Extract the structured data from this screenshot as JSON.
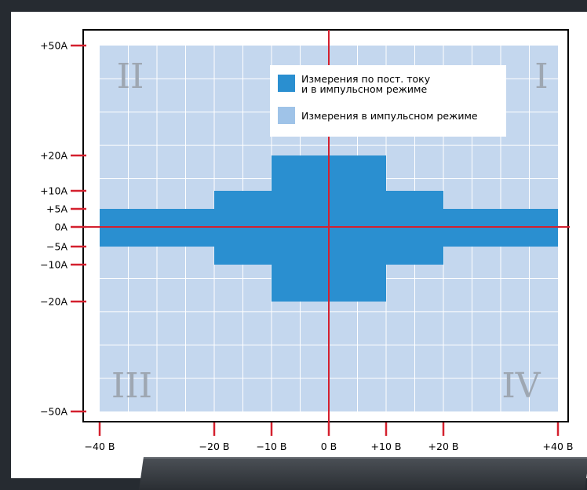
{
  "chart_data": {
    "type": "area",
    "title": "",
    "xlabel": "",
    "ylabel": "",
    "x_unit": "В",
    "y_unit": "A",
    "xlim": [
      -42,
      44
    ],
    "ylim": [
      -50,
      50
    ],
    "x_ticks": [
      {
        "value": -40,
        "label": "−40 В"
      },
      {
        "value": -20,
        "label": "−20 В"
      },
      {
        "value": -10,
        "label": "−10 В"
      },
      {
        "value": 0,
        "label": "0 В"
      },
      {
        "value": 10,
        "label": "+10 В"
      },
      {
        "value": 20,
        "label": "+20 В"
      },
      {
        "value": 40,
        "label": "+40 В"
      }
    ],
    "y_ticks": [
      {
        "value": 50,
        "label": "+50A"
      },
      {
        "value": 20,
        "label": "+20A"
      },
      {
        "value": 10,
        "label": "+10A"
      },
      {
        "value": 5,
        "label": "+5A"
      },
      {
        "value": 0,
        "label": "0A"
      },
      {
        "value": -5,
        "label": "−5A"
      },
      {
        "value": -10,
        "label": "−10A"
      },
      {
        "value": -20,
        "label": "−20A"
      },
      {
        "value": -50,
        "label": "−50A"
      }
    ],
    "grid": true,
    "series": [
      {
        "name": "Измерения в импульсном режиме",
        "color": "#c4d7ee",
        "regions": [
          {
            "x": [
              -40,
              40
            ],
            "y": [
              -50,
              50
            ]
          }
        ]
      },
      {
        "name": "Измерения по пост. току и в импульсном режиме",
        "color": "#2a8fd0",
        "regions": [
          {
            "x": [
              -40,
              40
            ],
            "y": [
              -5,
              5
            ]
          },
          {
            "x": [
              -20,
              20
            ],
            "y": [
              -10,
              10
            ]
          },
          {
            "x": [
              -10,
              10
            ],
            "y": [
              -20,
              20
            ]
          }
        ]
      }
    ],
    "legend": {
      "position": "top-center",
      "entries": [
        {
          "lines": [
            "Измерения по пост. току",
            "и в импульсном режиме"
          ],
          "color": "#2a8fd0"
        },
        {
          "lines": [
            "Измерения в импульсном режиме"
          ],
          "color": "#9fc3e8"
        }
      ]
    },
    "quadrants": [
      {
        "label": "I",
        "position": "top-right"
      },
      {
        "label": "II",
        "position": "top-left"
      },
      {
        "label": "III",
        "position": "bottom-left"
      },
      {
        "label": "IV",
        "position": "bottom-right"
      }
    ],
    "colors": {
      "axis": "#d4202e",
      "frame": "#000000",
      "grid": "#ffffff"
    }
  }
}
